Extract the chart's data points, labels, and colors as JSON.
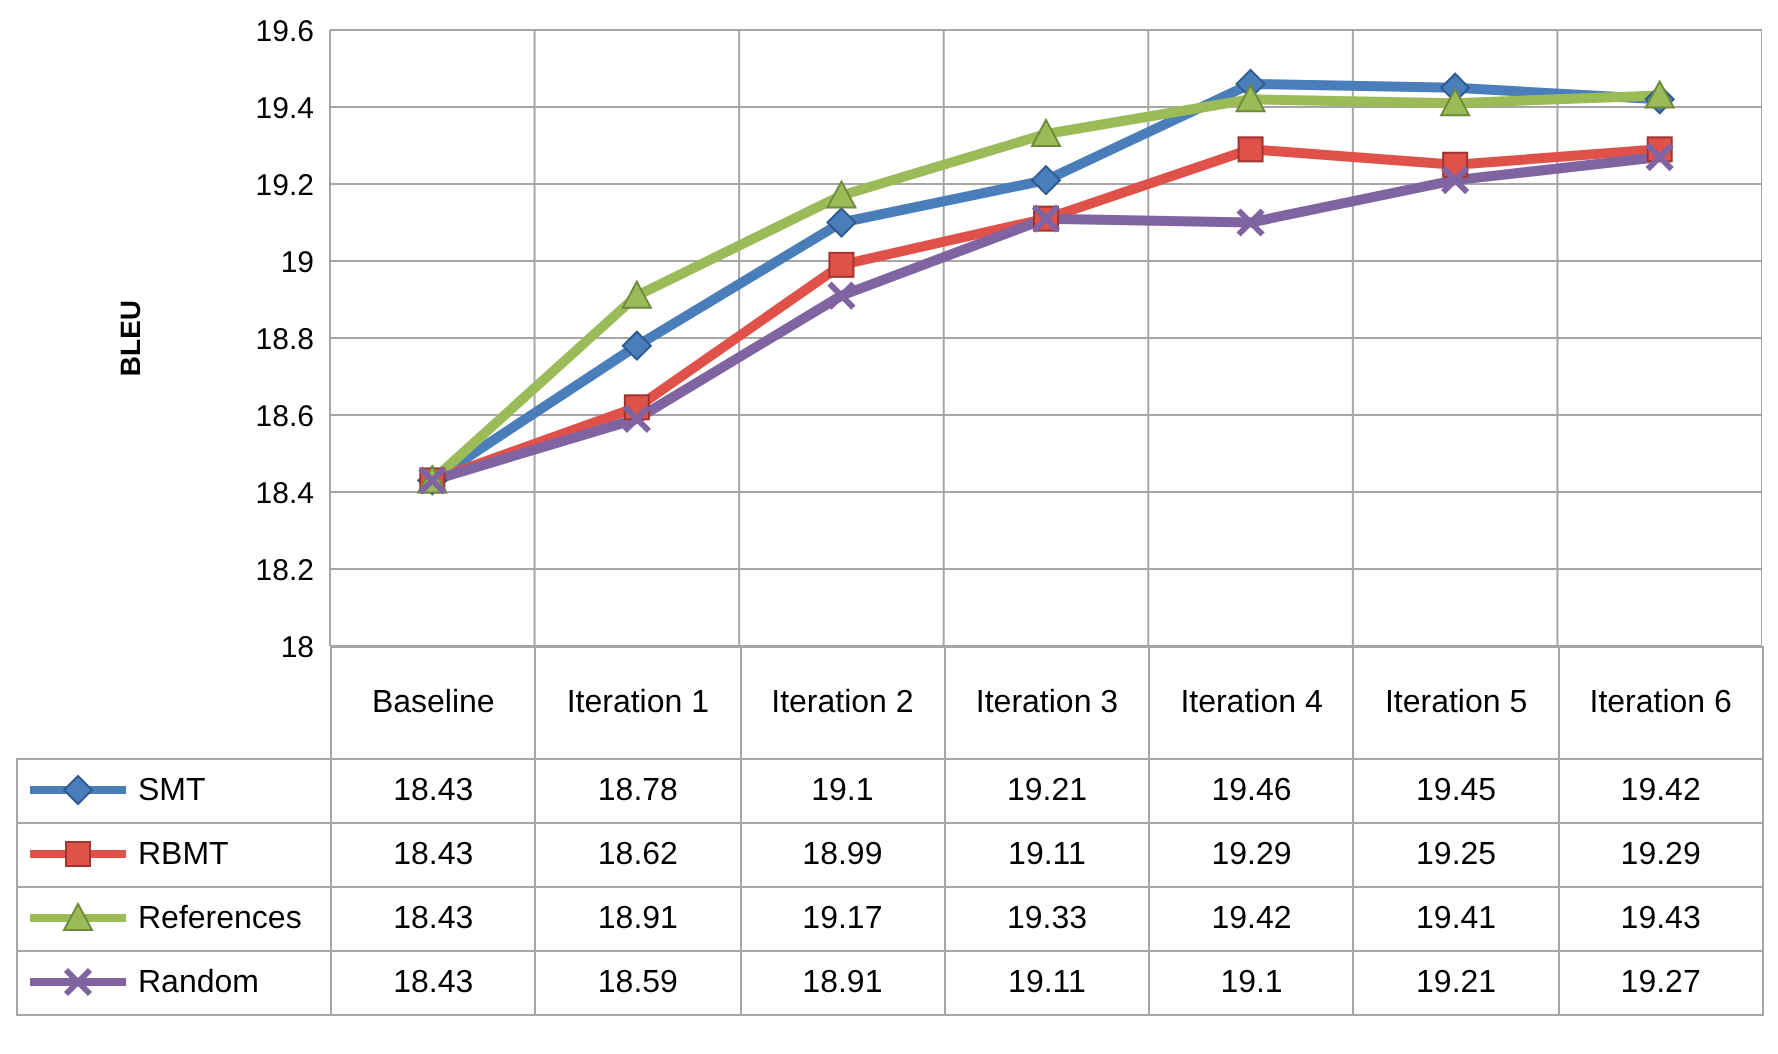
{
  "chart_data": {
    "type": "line",
    "ylabel": "BLEU",
    "categories": [
      "Baseline",
      "Iteration 1",
      "Iteration 2",
      "Iteration 3",
      "Iteration 4",
      "Iteration 5",
      "Iteration 6"
    ],
    "series": [
      {
        "name": "SMT",
        "color": "#4a7ebb",
        "marker": "diamond",
        "values": [
          18.43,
          18.78,
          19.1,
          19.21,
          19.46,
          19.45,
          19.42
        ]
      },
      {
        "name": "RBMT",
        "color": "#e0514a",
        "marker": "square",
        "values": [
          18.43,
          18.62,
          18.99,
          19.11,
          19.29,
          19.25,
          19.29
        ]
      },
      {
        "name": "References",
        "color": "#9bbb59",
        "marker": "triangle",
        "values": [
          18.43,
          18.91,
          19.17,
          19.33,
          19.42,
          19.41,
          19.43
        ]
      },
      {
        "name": "Random",
        "color": "#8064a2",
        "marker": "cross",
        "values": [
          18.43,
          18.59,
          18.91,
          19.11,
          19.1,
          19.21,
          19.27
        ]
      }
    ],
    "ylim": [
      18,
      19.6
    ],
    "yticks": [
      18,
      18.2,
      18.4,
      18.6,
      18.8,
      19,
      19.2,
      19.4,
      19.6
    ],
    "grid": true,
    "legend": "bottom left",
    "data_labels": true
  }
}
